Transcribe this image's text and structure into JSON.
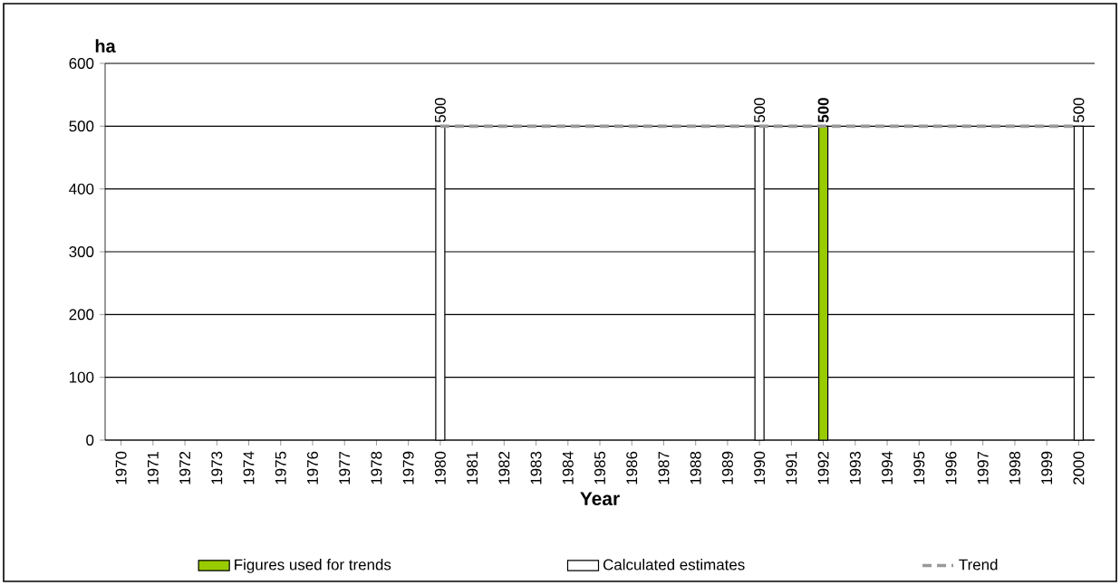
{
  "chart_data": {
    "type": "bar",
    "ylabel": "ha",
    "xlabel": "Year",
    "categories": [
      "1970",
      "1971",
      "1972",
      "1973",
      "1974",
      "1975",
      "1976",
      "1977",
      "1978",
      "1979",
      "1980",
      "1981",
      "1982",
      "1983",
      "1984",
      "1985",
      "1986",
      "1987",
      "1988",
      "1989",
      "1990",
      "1991",
      "1992",
      "1993",
      "1994",
      "1995",
      "1996",
      "1997",
      "1998",
      "1999",
      "2000"
    ],
    "series": [
      {
        "name": "Figures used for trends",
        "color": "#99cc00",
        "values": [
          null,
          null,
          null,
          null,
          null,
          null,
          null,
          null,
          null,
          null,
          null,
          null,
          null,
          null,
          null,
          null,
          null,
          null,
          null,
          null,
          null,
          null,
          500,
          null,
          null,
          null,
          null,
          null,
          null,
          null,
          null
        ],
        "value_labels": [
          null,
          null,
          null,
          null,
          null,
          null,
          null,
          null,
          null,
          null,
          null,
          null,
          null,
          null,
          null,
          null,
          null,
          null,
          null,
          null,
          null,
          null,
          "500",
          null,
          null,
          null,
          null,
          null,
          null,
          null,
          null
        ]
      },
      {
        "name": "Calculated estimates",
        "color": "#ffffff",
        "values": [
          null,
          null,
          null,
          null,
          null,
          null,
          null,
          null,
          null,
          null,
          500,
          null,
          null,
          null,
          null,
          null,
          null,
          null,
          null,
          null,
          500,
          null,
          null,
          null,
          null,
          null,
          null,
          null,
          null,
          null,
          500
        ],
        "value_labels": [
          null,
          null,
          null,
          null,
          null,
          null,
          null,
          null,
          null,
          null,
          "500",
          null,
          null,
          null,
          null,
          null,
          null,
          null,
          null,
          null,
          "500",
          null,
          null,
          null,
          null,
          null,
          null,
          null,
          null,
          null,
          "500"
        ]
      },
      {
        "name": "Trend",
        "type": "line",
        "color": "#999999",
        "line_style": "dashed",
        "marker": "none",
        "values": [
          null,
          null,
          null,
          null,
          null,
          null,
          null,
          null,
          null,
          null,
          500,
          500,
          500,
          500,
          500,
          500,
          500,
          500,
          500,
          500,
          500,
          500,
          500,
          500,
          500,
          500,
          500,
          500,
          500,
          500,
          500
        ]
      }
    ],
    "ylim": [
      0,
      600
    ],
    "yticks": [
      0,
      100,
      200,
      300,
      400,
      500,
      600
    ],
    "grid": "y",
    "legend": "bottom"
  }
}
